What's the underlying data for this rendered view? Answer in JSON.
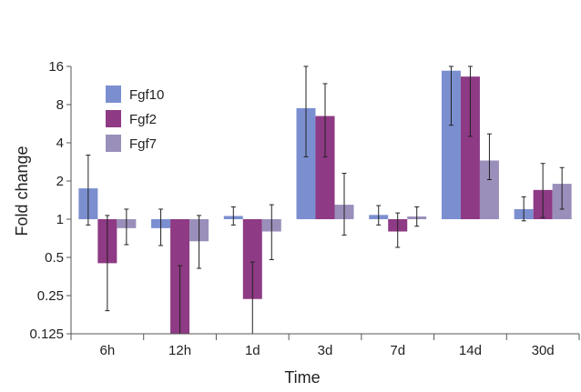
{
  "chart_data": {
    "type": "bar",
    "title": "",
    "xlabel": "Time",
    "ylabel": "Fold change",
    "y_scale": "log2",
    "ylim": [
      0.125,
      16
    ],
    "y_ticks": [
      {
        "value": 0.125,
        "label": "0.125"
      },
      {
        "value": 0.25,
        "label": "0.25"
      },
      {
        "value": 0.5,
        "label": "0.5"
      },
      {
        "value": 1,
        "label": "1"
      },
      {
        "value": 2,
        "label": "2"
      },
      {
        "value": 4,
        "label": "4"
      },
      {
        "value": 8,
        "label": "8"
      },
      {
        "value": 16,
        "label": "16"
      }
    ],
    "baseline": 1,
    "grid": false,
    "legend_position": "top-left",
    "categories": [
      "6h",
      "12h",
      "1d",
      "3d",
      "7d",
      "14d",
      "30d"
    ],
    "series": [
      {
        "name": "Fgf10",
        "color": "#7b8fd0",
        "values": [
          1.75,
          0.85,
          1.06,
          7.5,
          1.08,
          14.8,
          1.2
        ],
        "err_low": [
          0.9,
          0.62,
          0.9,
          3.1,
          0.9,
          5.5,
          0.97
        ],
        "err_high": [
          3.2,
          1.2,
          1.25,
          16.5,
          1.28,
          32.0,
          1.5
        ]
      },
      {
        "name": "Fgf2",
        "color": "#8e3a84",
        "values": [
          0.45,
          0.125,
          0.235,
          6.5,
          0.8,
          13.3,
          1.7
        ],
        "err_low": [
          0.19,
          0.125,
          0.125,
          3.1,
          0.6,
          4.5,
          1.03
        ],
        "err_high": [
          1.07,
          0.43,
          0.46,
          11.7,
          1.12,
          26.0,
          2.75
        ]
      },
      {
        "name": "Fgf7",
        "color": "#9a8fba",
        "values": [
          0.85,
          0.67,
          0.8,
          1.3,
          1.05,
          2.9,
          1.9
        ],
        "err_low": [
          0.63,
          0.41,
          0.48,
          0.75,
          0.88,
          2.05,
          1.2
        ],
        "err_high": [
          1.2,
          1.07,
          1.3,
          2.3,
          1.25,
          4.7,
          2.55
        ]
      }
    ]
  }
}
